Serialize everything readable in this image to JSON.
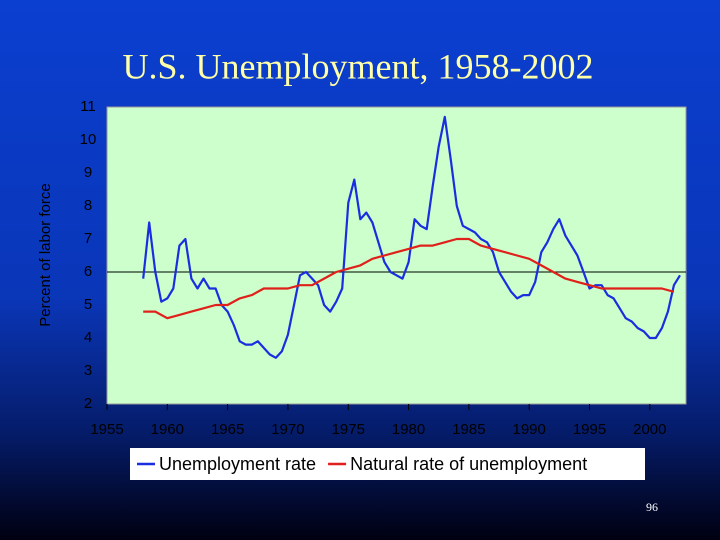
{
  "chart_data": {
    "type": "line",
    "title": "U.S. Unemployment, 1958-2002",
    "y_label": "Percent of labor force",
    "xlim": [
      1955,
      2003
    ],
    "xticks": [
      1955,
      1960,
      1965,
      1970,
      1975,
      1980,
      1985,
      1990,
      1995,
      2000
    ],
    "ylim": [
      2,
      11
    ],
    "yticks": [
      2,
      3,
      4,
      5,
      6,
      7,
      8,
      9,
      10,
      11
    ],
    "hline": 6,
    "legend": "bottom",
    "page_number": "96",
    "series": [
      {
        "name": "Unemployment rate",
        "color": "#1a2ee0",
        "x": [
          1958.0,
          1958.5,
          1959.0,
          1959.5,
          1960.0,
          1960.5,
          1961.0,
          1961.5,
          1962.0,
          1962.5,
          1963.0,
          1963.5,
          1964.0,
          1964.5,
          1965.0,
          1965.5,
          1966.0,
          1966.5,
          1967.0,
          1967.5,
          1968.0,
          1968.5,
          1969.0,
          1969.5,
          1970.0,
          1970.5,
          1971.0,
          1971.5,
          1972.0,
          1972.5,
          1973.0,
          1973.5,
          1974.0,
          1974.5,
          1975.0,
          1975.5,
          1976.0,
          1976.5,
          1977.0,
          1977.5,
          1978.0,
          1978.5,
          1979.0,
          1979.5,
          1980.0,
          1980.5,
          1981.0,
          1981.5,
          1982.0,
          1982.5,
          1983.0,
          1983.5,
          1984.0,
          1984.5,
          1985.0,
          1985.5,
          1986.0,
          1986.5,
          1987.0,
          1987.5,
          1988.0,
          1988.5,
          1989.0,
          1989.5,
          1990.0,
          1990.5,
          1991.0,
          1991.5,
          1992.0,
          1992.5,
          1993.0,
          1993.5,
          1994.0,
          1994.5,
          1995.0,
          1995.5,
          1996.0,
          1996.5,
          1997.0,
          1997.5,
          1998.0,
          1998.5,
          1999.0,
          1999.5,
          2000.0,
          2000.5,
          2001.0,
          2001.5,
          2002.0,
          2002.5
        ],
        "values": [
          5.8,
          7.5,
          6.0,
          5.1,
          5.2,
          5.5,
          6.8,
          7.0,
          5.8,
          5.5,
          5.8,
          5.5,
          5.5,
          5.0,
          4.8,
          4.4,
          3.9,
          3.8,
          3.8,
          3.9,
          3.7,
          3.5,
          3.4,
          3.6,
          4.1,
          5.0,
          5.9,
          6.0,
          5.8,
          5.6,
          5.0,
          4.8,
          5.1,
          5.5,
          8.1,
          8.8,
          7.6,
          7.8,
          7.5,
          6.9,
          6.3,
          6.0,
          5.9,
          5.8,
          6.3,
          7.6,
          7.4,
          7.3,
          8.6,
          9.8,
          10.7,
          9.4,
          8.0,
          7.4,
          7.3,
          7.2,
          7.0,
          6.9,
          6.6,
          6.0,
          5.7,
          5.4,
          5.2,
          5.3,
          5.3,
          5.7,
          6.6,
          6.9,
          7.3,
          7.6,
          7.1,
          6.8,
          6.5,
          6.0,
          5.5,
          5.6,
          5.6,
          5.3,
          5.2,
          4.9,
          4.6,
          4.5,
          4.3,
          4.2,
          4.0,
          4.0,
          4.3,
          4.8,
          5.6,
          5.9
        ]
      },
      {
        "name": "Natural rate of unemployment",
        "color": "#e0201a",
        "x": [
          1958,
          1959,
          1960,
          1961,
          1962,
          1963,
          1964,
          1965,
          1966,
          1967,
          1968,
          1969,
          1970,
          1971,
          1972,
          1973,
          1974,
          1975,
          1976,
          1977,
          1978,
          1979,
          1980,
          1981,
          1982,
          1983,
          1984,
          1985,
          1986,
          1987,
          1988,
          1989,
          1990,
          1991,
          1992,
          1993,
          1994,
          1995,
          1996,
          1997,
          1998,
          1999,
          2000,
          2001,
          2002
        ],
        "values": [
          4.8,
          4.8,
          4.6,
          4.7,
          4.8,
          4.9,
          5.0,
          5.0,
          5.2,
          5.3,
          5.5,
          5.5,
          5.5,
          5.6,
          5.6,
          5.8,
          6.0,
          6.1,
          6.2,
          6.4,
          6.5,
          6.6,
          6.7,
          6.8,
          6.8,
          6.9,
          7.0,
          7.0,
          6.8,
          6.7,
          6.6,
          6.5,
          6.4,
          6.2,
          6.0,
          5.8,
          5.7,
          5.6,
          5.5,
          5.5,
          5.5,
          5.5,
          5.5,
          5.5,
          5.4
        ]
      }
    ]
  }
}
